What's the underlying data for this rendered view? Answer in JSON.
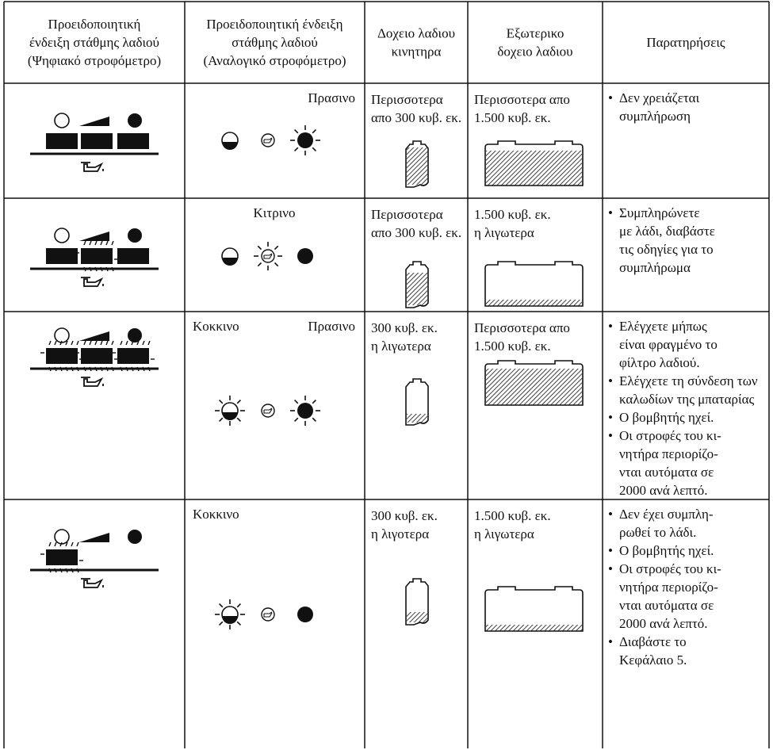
{
  "table": {
    "header": [
      [
        "Προειδοποιητική",
        "ένδειξη στάθμης λαδιού",
        "(Ψηφιακό στροφόμετρο)"
      ],
      [
        "Προειδοποιητική ένδειξη",
        "στάθμης λαδιού",
        "(Αναλογικό στροφόμετρο)"
      ],
      [
        "Δοχειο λαδιου",
        "κινητηρα"
      ],
      [
        "Εξωτερικο",
        "δοχειο λαδιου"
      ],
      [
        "Παρατηρήσεις"
      ]
    ],
    "rows": [
      {
        "analog": [
          "Πρασινο"
        ],
        "engine_tank": [
          "Περισσοτερα",
          "απο 300 κυβ. εκ."
        ],
        "external_tank": [
          "Περισσοτερα απο",
          "1.500 κυβ. εκ."
        ],
        "notes": [
          [
            "Δεν χρειάζεται",
            "συμπλήρωση"
          ]
        ]
      },
      {
        "analog": [
          "Κιτρινο"
        ],
        "engine_tank": [
          "Περισσοτερα",
          "απο 300 κυβ. εκ."
        ],
        "external_tank": [
          "1.500 κυβ. εκ.",
          "η λιγωτερα"
        ],
        "notes": [
          [
            "Συμπληρώνετε",
            "με λάδι, διαβάστε",
            "τις οδηγίες για το",
            "συμπλήρωμα"
          ]
        ]
      },
      {
        "analog": [
          "Κοκκινο",
          "Πρασινο"
        ],
        "engine_tank": [
          "300 κυβ. εκ.",
          "η λιγωτερα"
        ],
        "external_tank": [
          "Περισσοτερα απο",
          "1.500 κυβ. εκ."
        ],
        "notes": [
          [
            "Ελέγχετε μήπως",
            "είναι φραγμένο το",
            "φίλτρο λαδιού."
          ],
          [
            "Ελέγχετε τη σύνδεση των",
            "καλωδίων της μπαταρίας"
          ],
          [
            "Ο βομβητής ηχεί."
          ],
          [
            "Οι στροφές του κι-",
            "νητήρα περιορίζο-",
            "νται αυτόματα σε",
            "2000 ανά λεπτό."
          ]
        ]
      },
      {
        "analog": [
          "Κοκκινο"
        ],
        "engine_tank": [
          "300 κυβ. εκ.",
          "η λιγοτερα"
        ],
        "external_tank": [
          "1.500 κυβ. εκ.",
          "η λιγωτερα"
        ],
        "notes": [
          [
            "Δεν έχει συμπλη-",
            "ρωθεί το λάδι."
          ],
          [
            "Ο βομβητής ηχεί."
          ],
          [
            "Οι στροφές του κι-",
            "νητήρα περιορίζο-",
            "νται αυτόματα σε",
            "2000 ανά λεπτό."
          ],
          [
            "Διαβάστε το",
            "Κεφάλαιο 5."
          ]
        ]
      }
    ]
  }
}
